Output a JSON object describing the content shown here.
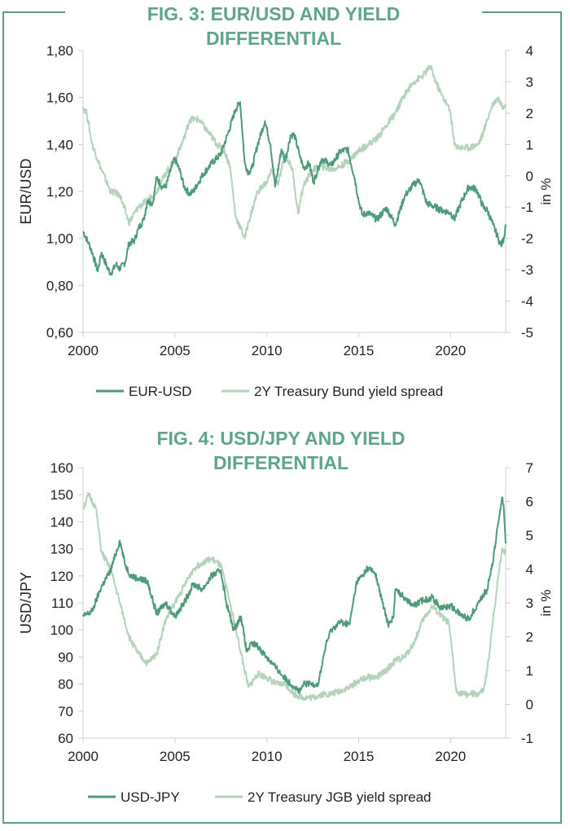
{
  "colors": {
    "frame": "#5a9e86",
    "title": "#5fa58b",
    "primary_series": "#4e9b7c",
    "secondary_series": "#b5d3bb",
    "axis": "#d0d0d0",
    "text": "#222222"
  },
  "chart_data": [
    {
      "type": "line",
      "title_lines": [
        "FIG. 3: EUR/USD AND YIELD",
        "DIFFERENTIAL"
      ],
      "xlabel": "",
      "ylabel": "EUR/USD",
      "y2label": "in %",
      "x_ticks": [
        "2000",
        "2005",
        "2010",
        "2015",
        "2020"
      ],
      "x_tick_values": [
        2000,
        2005,
        2010,
        2015,
        2020
      ],
      "xlim": [
        2000,
        2023
      ],
      "y_ticks": [
        "1,80",
        "1,60",
        "1,40",
        "1,20",
        "1,00",
        "0,80",
        "0,60"
      ],
      "y_tick_values": [
        1.8,
        1.6,
        1.4,
        1.2,
        1.0,
        0.8,
        0.6
      ],
      "ylim": [
        0.6,
        1.8
      ],
      "y2_ticks": [
        "4",
        "3",
        "2",
        "1",
        "0",
        "-1",
        "-2",
        "-3",
        "-4",
        "-5"
      ],
      "y2_tick_values": [
        4,
        3,
        2,
        1,
        0,
        -1,
        -2,
        -3,
        -4,
        -5
      ],
      "y2lim": [
        -5,
        4
      ],
      "legend_position": "bottom",
      "series": [
        {
          "name": "EUR-USD",
          "axis": "left",
          "x": [
            2000.0,
            2000.3,
            2000.5,
            2000.8,
            2001.0,
            2001.3,
            2001.5,
            2001.8,
            2002.0,
            2002.3,
            2002.5,
            2002.8,
            2003.0,
            2003.3,
            2003.5,
            2003.8,
            2004.0,
            2004.3,
            2004.5,
            2004.8,
            2005.0,
            2005.3,
            2005.5,
            2005.8,
            2006.0,
            2006.5,
            2007.0,
            2007.5,
            2007.9,
            2008.3,
            2008.55,
            2008.8,
            2009.0,
            2009.2,
            2009.5,
            2009.9,
            2010.2,
            2010.45,
            2010.8,
            2011.0,
            2011.3,
            2011.5,
            2011.8,
            2012.0,
            2012.3,
            2012.55,
            2012.8,
            2013.0,
            2013.5,
            2014.0,
            2014.4,
            2014.8,
            2015.0,
            2015.2,
            2015.5,
            2016.0,
            2016.5,
            2017.0,
            2017.5,
            2018.0,
            2018.3,
            2018.7,
            2019.0,
            2019.5,
            2020.0,
            2020.2,
            2020.5,
            2020.8,
            2021.0,
            2021.4,
            2021.8,
            2022.0,
            2022.3,
            2022.6,
            2022.75,
            2022.9,
            2023.0
          ],
          "values": [
            1.03,
            0.98,
            0.94,
            0.86,
            0.94,
            0.88,
            0.85,
            0.89,
            0.87,
            0.9,
            0.98,
            0.99,
            1.04,
            1.08,
            1.16,
            1.15,
            1.26,
            1.22,
            1.22,
            1.3,
            1.34,
            1.28,
            1.22,
            1.19,
            1.2,
            1.27,
            1.32,
            1.36,
            1.45,
            1.55,
            1.58,
            1.32,
            1.28,
            1.3,
            1.4,
            1.5,
            1.4,
            1.22,
            1.38,
            1.33,
            1.44,
            1.44,
            1.35,
            1.3,
            1.32,
            1.24,
            1.3,
            1.34,
            1.31,
            1.37,
            1.38,
            1.25,
            1.16,
            1.1,
            1.11,
            1.08,
            1.13,
            1.06,
            1.18,
            1.23,
            1.25,
            1.15,
            1.14,
            1.12,
            1.11,
            1.08,
            1.14,
            1.19,
            1.22,
            1.21,
            1.13,
            1.12,
            1.06,
            1.0,
            0.97,
            1.0,
            1.06
          ]
        },
        {
          "name": "2Y Treasury Bund yield spread",
          "axis": "right",
          "x": [
            2000.0,
            2000.2,
            2000.5,
            2001.0,
            2001.5,
            2002.0,
            2002.5,
            2003.0,
            2003.5,
            2004.0,
            2004.5,
            2005.0,
            2005.5,
            2005.8,
            2006.3,
            2006.8,
            2007.3,
            2007.7,
            2008.0,
            2008.3,
            2008.6,
            2008.8,
            2009.0,
            2009.5,
            2010.0,
            2010.3,
            2010.6,
            2011.0,
            2011.4,
            2011.7,
            2012.0,
            2012.5,
            2013.0,
            2013.5,
            2014.0,
            2014.5,
            2015.0,
            2015.5,
            2016.0,
            2016.5,
            2017.0,
            2017.5,
            2018.0,
            2018.5,
            2018.9,
            2019.2,
            2019.5,
            2019.8,
            2020.0,
            2020.2,
            2020.5,
            2021.0,
            2021.5,
            2021.8,
            2022.0,
            2022.3,
            2022.6,
            2022.8,
            2023.0
          ],
          "values": [
            2.2,
            2.0,
            1.0,
            0.2,
            -0.5,
            -0.6,
            -1.5,
            -1.0,
            -0.8,
            -0.5,
            0.1,
            0.5,
            1.2,
            1.8,
            1.8,
            1.4,
            1.0,
            0.8,
            0.3,
            -1.3,
            -1.7,
            -2.0,
            -1.5,
            -0.5,
            -0.2,
            0.2,
            -0.3,
            0.7,
            0.2,
            -1.2,
            -0.3,
            0.2,
            0.3,
            0.2,
            0.3,
            0.5,
            0.8,
            1.0,
            1.2,
            1.6,
            2.0,
            2.6,
            3.0,
            3.2,
            3.5,
            3.0,
            2.6,
            2.3,
            2.0,
            1.0,
            0.9,
            0.9,
            1.0,
            1.4,
            1.8,
            2.3,
            2.5,
            2.2,
            2.3
          ]
        }
      ]
    },
    {
      "type": "line",
      "title_lines": [
        "FIG. 4: USD/JPY AND YIELD",
        "DIFFERENTIAL"
      ],
      "xlabel": "",
      "ylabel": "USD/JPY",
      "y2label": "in %",
      "x_ticks": [
        "2000",
        "2005",
        "2010",
        "2015",
        "2020"
      ],
      "x_tick_values": [
        2000,
        2005,
        2010,
        2015,
        2020
      ],
      "xlim": [
        2000,
        2023
      ],
      "y_ticks": [
        "160",
        "150",
        "140",
        "130",
        "120",
        "110",
        "100",
        "90",
        "80",
        "70",
        "60"
      ],
      "y_tick_values": [
        160,
        150,
        140,
        130,
        120,
        110,
        100,
        90,
        80,
        70,
        60
      ],
      "ylim": [
        60,
        160
      ],
      "y2_ticks": [
        "7",
        "6",
        "5",
        "4",
        "3",
        "2",
        "1",
        "0",
        "-1"
      ],
      "y2_tick_values": [
        7,
        6,
        5,
        4,
        3,
        2,
        1,
        0,
        -1
      ],
      "y2lim": [
        -1,
        7
      ],
      "legend_position": "bottom",
      "series": [
        {
          "name": "USD-JPY",
          "axis": "left",
          "x": [
            2000.0,
            2000.5,
            2001.0,
            2001.5,
            2002.0,
            2002.3,
            2002.6,
            2003.0,
            2003.5,
            2004.0,
            2004.5,
            2005.0,
            2005.5,
            2006.0,
            2006.5,
            2007.0,
            2007.5,
            2007.8,
            2008.2,
            2008.6,
            2008.9,
            2009.2,
            2009.5,
            2010.0,
            2010.5,
            2011.0,
            2011.5,
            2011.8,
            2012.0,
            2012.4,
            2012.8,
            2013.2,
            2013.5,
            2014.0,
            2014.5,
            2014.9,
            2015.2,
            2015.5,
            2015.9,
            2016.3,
            2016.6,
            2016.9,
            2017.0,
            2017.5,
            2018.0,
            2018.5,
            2019.0,
            2019.5,
            2020.0,
            2020.5,
            2021.0,
            2021.5,
            2022.0,
            2022.3,
            2022.6,
            2022.8,
            2022.9,
            2023.0
          ],
          "values": [
            105,
            107,
            116,
            122,
            133,
            124,
            120,
            119,
            118,
            106,
            110,
            105,
            110,
            117,
            115,
            120,
            122,
            110,
            100,
            105,
            92,
            95,
            94,
            90,
            86,
            82,
            79,
            77,
            80,
            80,
            80,
            94,
            100,
            103,
            102,
            118,
            120,
            123,
            121,
            110,
            102,
            105,
            115,
            112,
            109,
            111,
            112,
            108,
            109,
            106,
            104,
            110,
            115,
            125,
            140,
            149,
            145,
            132
          ]
        },
        {
          "name": "2Y Treasury JGB yield spread",
          "axis": "right",
          "x": [
            2000.0,
            2000.3,
            2000.7,
            2001.0,
            2001.5,
            2002.0,
            2002.5,
            2003.0,
            2003.5,
            2004.0,
            2004.5,
            2005.0,
            2005.5,
            2006.0,
            2006.5,
            2007.0,
            2007.5,
            2008.0,
            2008.4,
            2008.8,
            2009.0,
            2009.5,
            2010.0,
            2010.5,
            2011.0,
            2011.5,
            2012.0,
            2012.5,
            2013.0,
            2013.5,
            2014.0,
            2014.5,
            2015.0,
            2015.5,
            2016.0,
            2016.5,
            2017.0,
            2017.5,
            2018.0,
            2018.5,
            2019.0,
            2019.5,
            2019.9,
            2020.1,
            2020.3,
            2020.7,
            2021.0,
            2021.5,
            2021.8,
            2022.0,
            2022.3,
            2022.6,
            2022.8,
            2023.0
          ],
          "values": [
            5.8,
            6.2,
            5.8,
            4.5,
            4.0,
            3.0,
            2.0,
            1.5,
            1.2,
            1.5,
            2.5,
            3.0,
            3.5,
            4.0,
            4.2,
            4.3,
            4.1,
            3.0,
            2.0,
            1.0,
            0.5,
            0.9,
            0.8,
            0.6,
            0.6,
            0.3,
            0.2,
            0.2,
            0.3,
            0.3,
            0.4,
            0.5,
            0.7,
            0.8,
            0.8,
            1.0,
            1.3,
            1.4,
            1.8,
            2.5,
            2.9,
            2.6,
            2.4,
            1.5,
            0.4,
            0.3,
            0.3,
            0.3,
            0.4,
            1.0,
            2.4,
            3.8,
            4.6,
            4.5
          ]
        }
      ]
    }
  ]
}
